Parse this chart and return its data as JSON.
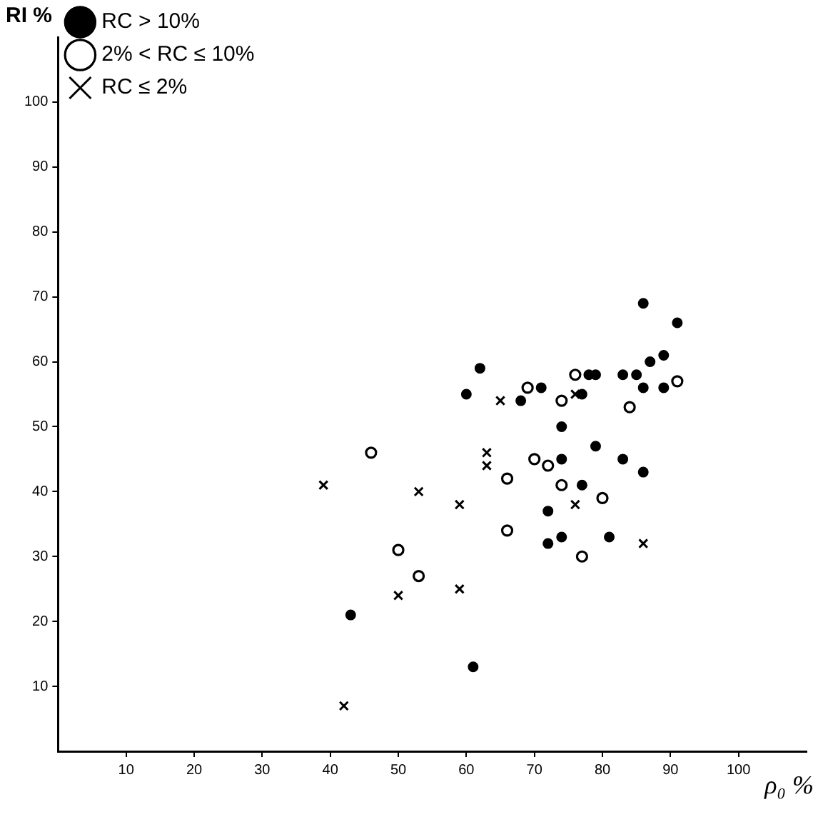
{
  "chart_data": {
    "type": "scatter",
    "xlabel": "ρ₀ %",
    "ylabel": "RI %",
    "xlim": [
      0,
      110
    ],
    "ylim": [
      0,
      110
    ],
    "xticks": [
      10,
      20,
      30,
      40,
      50,
      60,
      70,
      80,
      90,
      100
    ],
    "yticks": [
      10,
      20,
      30,
      40,
      50,
      60,
      70,
      80,
      90,
      100
    ],
    "grid": false,
    "legend": "top left",
    "series": [
      {
        "name": "RC > 10%",
        "color": "#000000",
        "marker": "circle",
        "x": [
          62,
          60,
          68,
          71,
          74,
          74,
          86,
          91,
          89,
          87,
          78,
          79,
          83,
          85,
          86,
          89,
          77,
          79,
          83,
          86,
          77,
          72,
          72,
          74,
          81,
          43,
          61
        ],
        "values": [
          59,
          55,
          54,
          56,
          50,
          45,
          69,
          66,
          61,
          60,
          58,
          58,
          58,
          58,
          56,
          56,
          55,
          47,
          45,
          43,
          41,
          37,
          32,
          33,
          33,
          21,
          13
        ]
      },
      {
        "name": "2% < RC ≤ 10%",
        "color": "#000000",
        "marker": "circle",
        "x": [
          69,
          74,
          76,
          46,
          66,
          70,
          72,
          74,
          91,
          84,
          80,
          77,
          66,
          50,
          53
        ],
        "values": [
          56,
          54,
          58,
          46,
          42,
          45,
          44,
          41,
          57,
          53,
          39,
          30,
          34,
          31,
          27
        ]
      },
      {
        "name": "RC ≤ 2%",
        "color": "#000000",
        "marker": "cross",
        "x": [
          65,
          76,
          63,
          63,
          39,
          53,
          76,
          86,
          59,
          50,
          59,
          42
        ],
        "values": [
          54,
          55,
          46,
          44,
          41,
          40,
          38,
          32,
          38,
          24,
          25,
          7
        ]
      }
    ]
  }
}
